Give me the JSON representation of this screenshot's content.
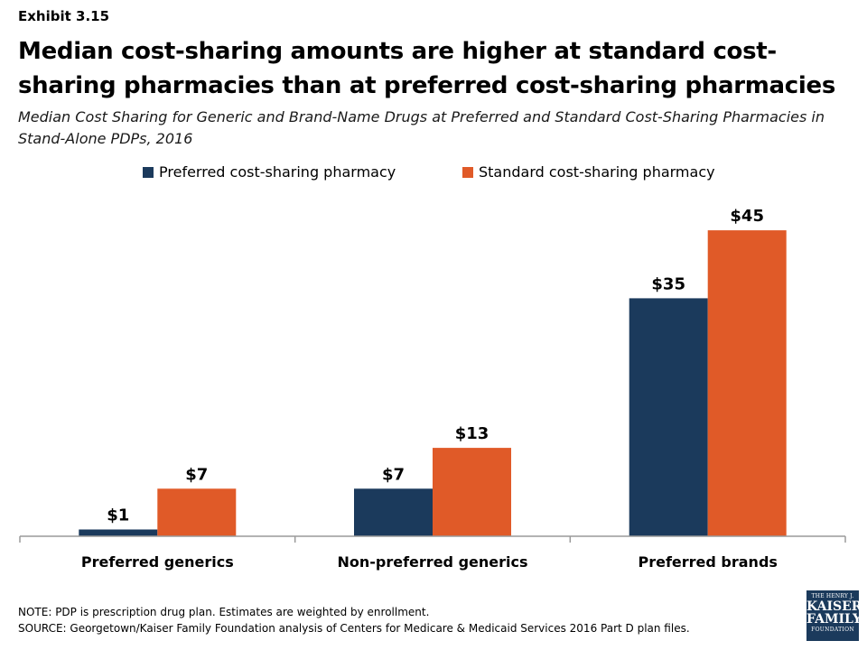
{
  "exhibit_label": "Exhibit 3.15",
  "title": "Median cost-sharing amounts are higher at standard cost-sharing pharmacies than at preferred cost-sharing pharmacies",
  "subtitle": "Median Cost Sharing for Generic and Brand-Name Drugs at Preferred and Standard Cost-Sharing Pharmacies in Stand-Alone PDPs, 2016",
  "colors": {
    "preferred": "#1b3a5c",
    "standard": "#e05a28",
    "axis": "#9a9a9a"
  },
  "chart_data": {
    "type": "bar",
    "categories": [
      "Preferred generics",
      "Non-preferred generics",
      "Preferred brands"
    ],
    "series": [
      {
        "name": "Preferred cost-sharing pharmacy",
        "values": [
          1,
          7,
          35
        ],
        "labels": [
          "$1",
          "$7",
          "$35"
        ],
        "color": "#1b3a5c"
      },
      {
        "name": "Standard cost-sharing pharmacy",
        "values": [
          7,
          13,
          45
        ],
        "labels": [
          "$7",
          "$13",
          "$45"
        ],
        "color": "#e05a28"
      }
    ],
    "ylim": [
      0,
      52
    ],
    "grid": false,
    "legend_position": "top-center"
  },
  "note": "NOTE: PDP is prescription drug plan. Estimates are weighted by enrollment.",
  "source": "SOURCE: Georgetown/Kaiser Family Foundation analysis of Centers for Medicare & Medicaid Services 2016 Part D plan files.",
  "logo": {
    "line1": "THE HENRY J.",
    "line2": "KAISER",
    "line3": "FAMILY",
    "line4": "FOUNDATION"
  }
}
